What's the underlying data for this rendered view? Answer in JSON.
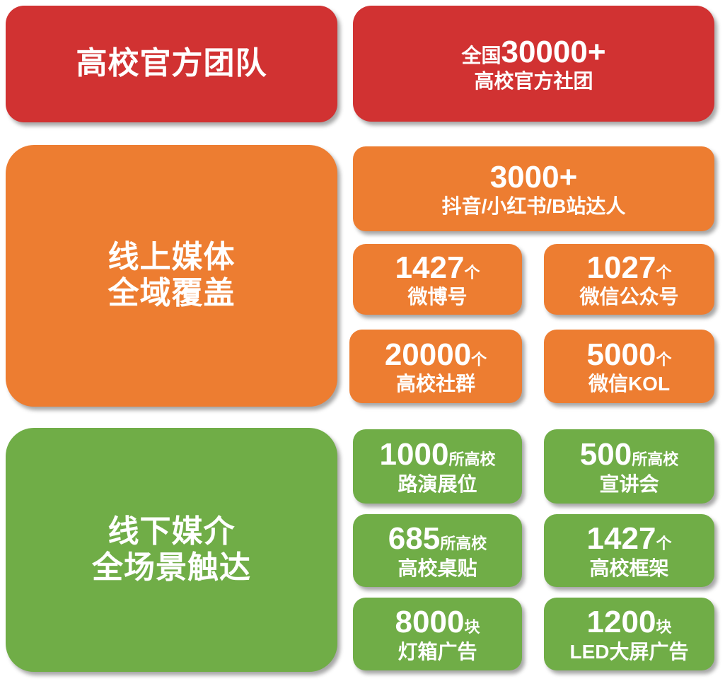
{
  "colors": {
    "red": "#D13232",
    "orange": "#ED7D31",
    "green": "#70AD47"
  },
  "team": {
    "title": "高校官方团队",
    "stat_line1_prefix": "全国",
    "stat_line1_number": "30000+",
    "stat_line2": "高校官方社团"
  },
  "online": {
    "title_line1": "线上媒体",
    "title_line2": "全域覆盖",
    "headline": {
      "number": "3000+",
      "label": "抖音/小红书/B站达人"
    },
    "tiles": [
      {
        "number": "1427",
        "unit": "个",
        "label": "微博号"
      },
      {
        "number": "1027",
        "unit": "个",
        "label": "微信公众号"
      },
      {
        "number": "20000",
        "unit": "个",
        "label": "高校社群"
      },
      {
        "number": "5000",
        "unit": "个",
        "label": "微信KOL"
      }
    ]
  },
  "offline": {
    "title_line1": "线下媒介",
    "title_line2": "全场景触达",
    "tiles": [
      {
        "number": "1000",
        "unit": "所高校",
        "label": "路演展位"
      },
      {
        "number": "500",
        "unit": "所高校",
        "label": "宣讲会"
      },
      {
        "number": "685",
        "unit": "所高校",
        "label": "高校桌贴"
      },
      {
        "number": "1427",
        "unit": "个",
        "label": "高校框架"
      },
      {
        "number": "8000",
        "unit": "块",
        "label": "灯箱广告"
      },
      {
        "number": "1200",
        "unit": "块",
        "label": "LED大屏广告"
      }
    ]
  }
}
